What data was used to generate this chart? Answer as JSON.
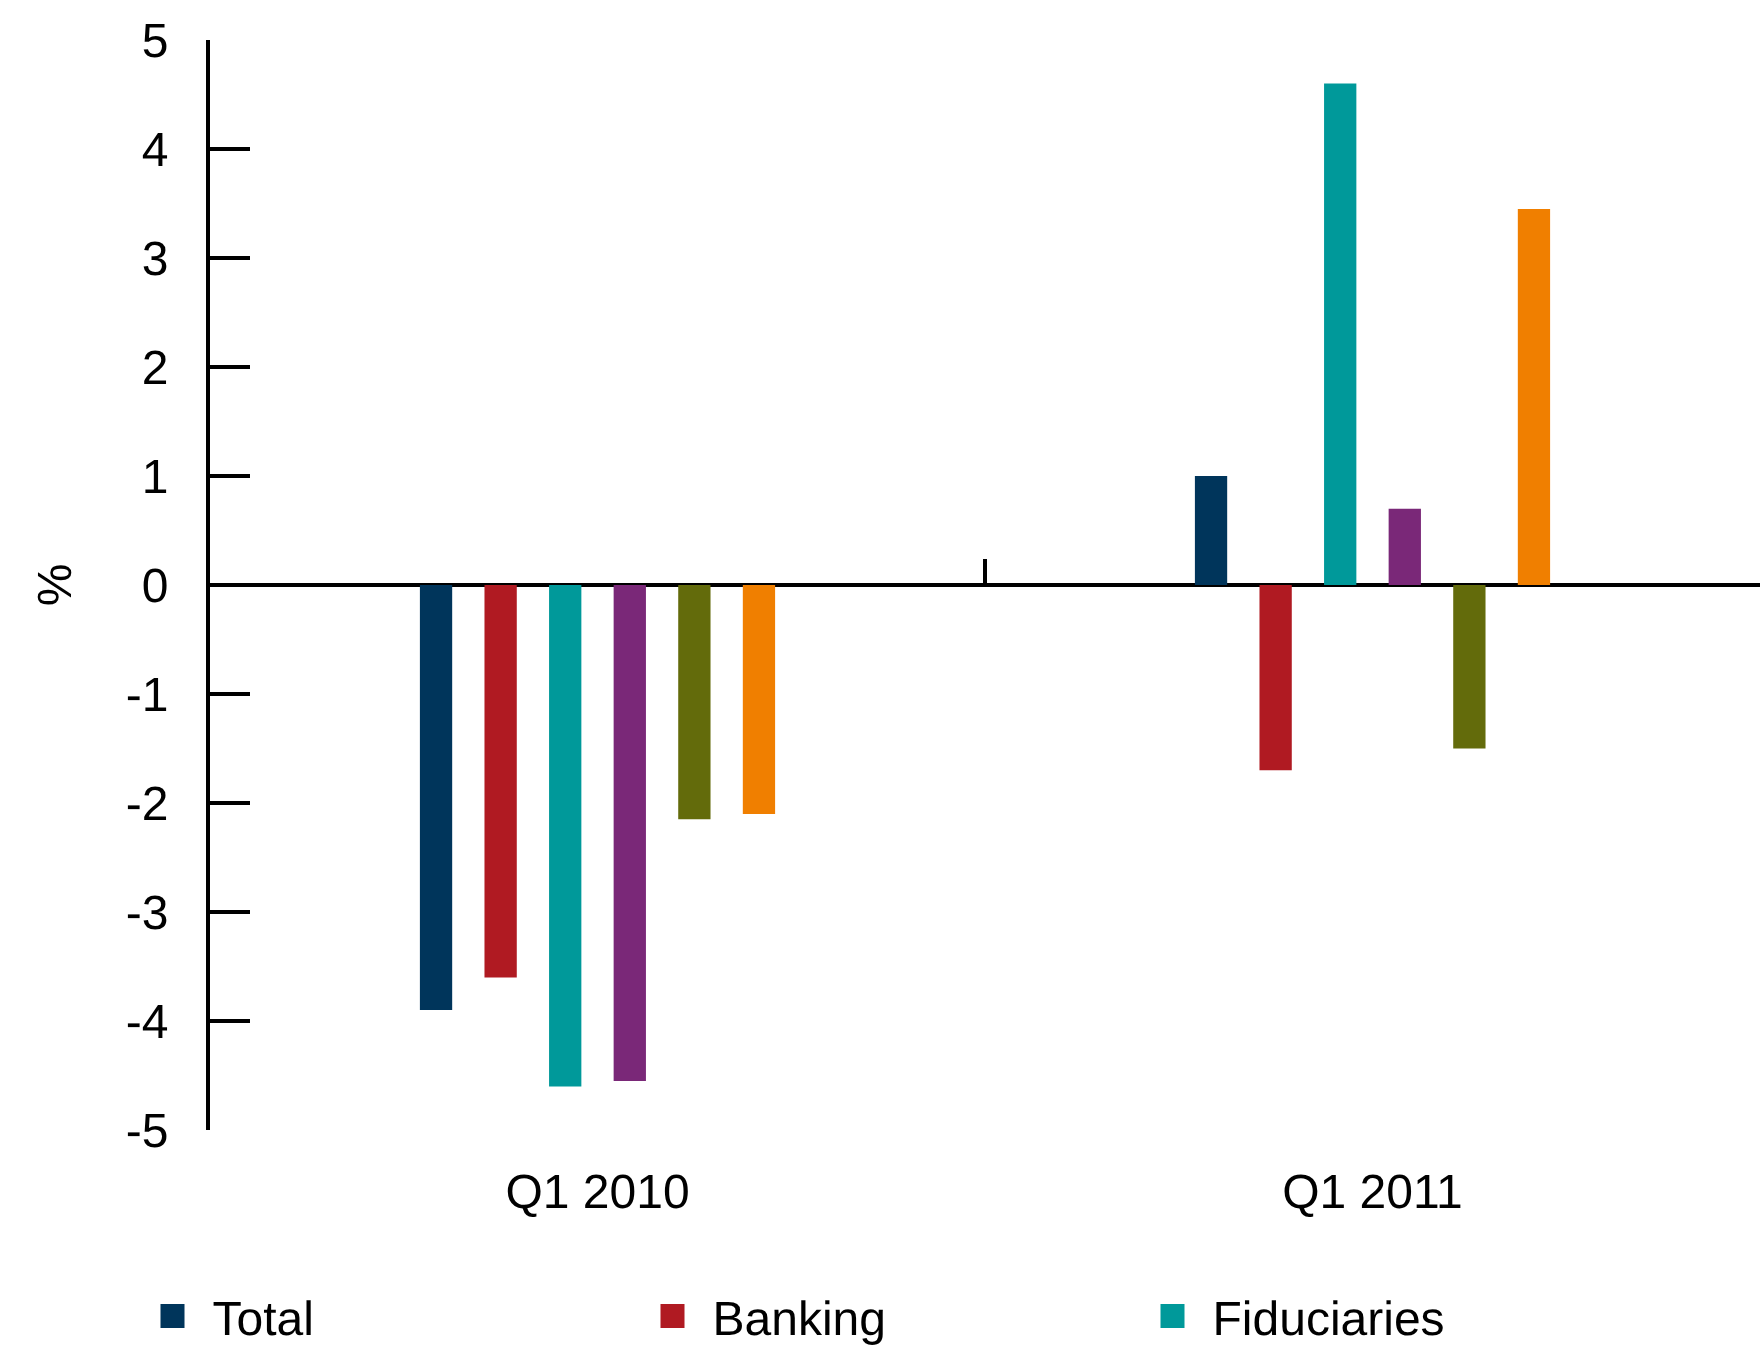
{
  "chart_data": {
    "type": "bar",
    "ylabel": "%",
    "categories": [
      "Q1 2010",
      "Q1 2011"
    ],
    "series": [
      {
        "name": "Total",
        "color": "#00355b",
        "values": [
          -3.9,
          1.0
        ]
      },
      {
        "name": "Banking",
        "color": "#b01a22",
        "values": [
          -3.6,
          -1.7
        ]
      },
      {
        "name": "Fiduciaries",
        "color": "#00999a",
        "values": [
          -4.6,
          4.6
        ]
      },
      {
        "color": "#7a2878",
        "values": [
          -4.55,
          0.7
        ]
      },
      {
        "color": "#636b0b",
        "values": [
          -2.15,
          -1.5
        ]
      },
      {
        "color": "#f07f00",
        "values": [
          -2.1,
          3.45
        ]
      }
    ],
    "ylim": [
      -5,
      5
    ],
    "yticks": [
      -5,
      -4,
      -3,
      -2,
      -1,
      0,
      1,
      2,
      3,
      4,
      5
    ],
    "legend": "bottom"
  }
}
